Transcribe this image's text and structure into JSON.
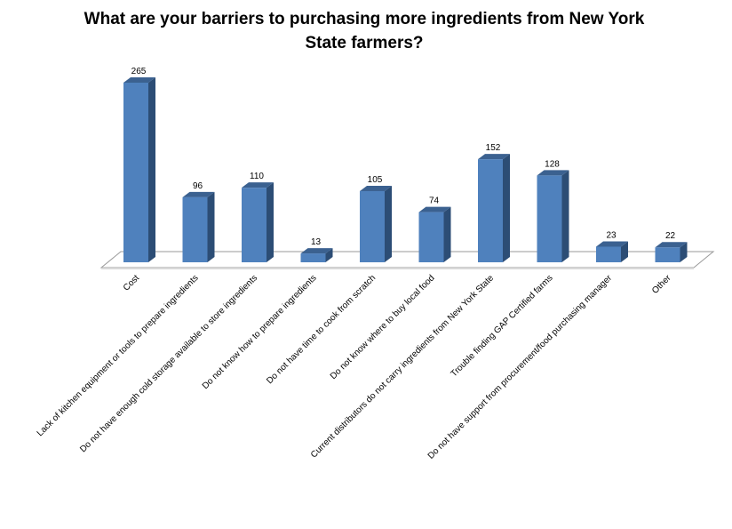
{
  "chart_data": {
    "type": "bar",
    "title": "What are  your barriers to purchasing more ingredients from New York State farmers?",
    "xlabel": "",
    "ylabel": "",
    "ylim": [
      0,
      280
    ],
    "grid": false,
    "legend": "none",
    "categories": [
      "Cost",
      "Lack of kitchen equipment or tools to prepare ingredients",
      "Do not have enough cold storage available to store ingredients",
      "Do not know how to prepare ingredients",
      "Do not have time to cook from scratch",
      "Do not know where to buy local food",
      "Current distributors do not carry ingredients from New York State",
      "Trouble finding GAP Certified farms",
      "Do not have support from procurement/food purchasing manager",
      "Other"
    ],
    "values": [
      265,
      96,
      110,
      13,
      105,
      74,
      152,
      128,
      23,
      22
    ],
    "colors": {
      "bar_front": "#4f81bd",
      "bar_top": "#3b6190",
      "bar_side": "#2c4d75",
      "floor": "#ffffff",
      "floor_edge": "#9a9a9a"
    }
  }
}
